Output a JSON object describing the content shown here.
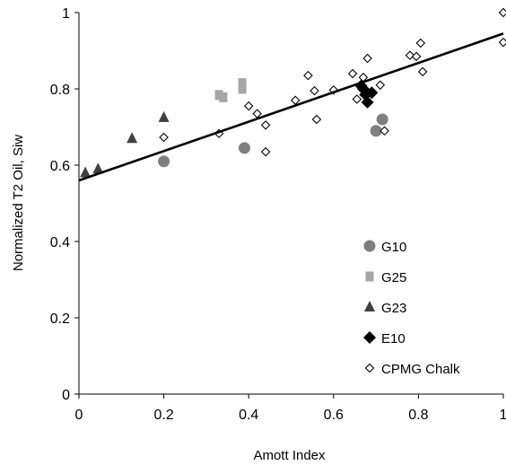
{
  "chart_data": {
    "type": "scatter",
    "xlabel": "Amott Index",
    "ylabel": "Normalized T2 Oil, Siw",
    "xlim": [
      0,
      1
    ],
    "ylim": [
      0,
      1
    ],
    "x_ticks": [
      "0",
      "0.2",
      "0.4",
      "0.6",
      "0.8",
      "1"
    ],
    "y_ticks": [
      "0",
      "0.2",
      "0.4",
      "0.6",
      "0.8",
      "1"
    ],
    "grid": false,
    "legend_position": "bottom-right",
    "series": [
      {
        "name": "G10",
        "marker": "circle",
        "color": "#7f7f7f",
        "points": [
          [
            0.2,
            0.61
          ],
          [
            0.39,
            0.645
          ],
          [
            0.7,
            0.69
          ],
          [
            0.715,
            0.72
          ]
        ]
      },
      {
        "name": "G25",
        "marker": "square",
        "color": "#a6a6a6",
        "points": [
          [
            0.33,
            0.784
          ],
          [
            0.34,
            0.778
          ],
          [
            0.385,
            0.8
          ],
          [
            0.385,
            0.815
          ]
        ]
      },
      {
        "name": "G23",
        "marker": "triangle",
        "color": "#404040",
        "points": [
          [
            0.015,
            0.58
          ],
          [
            0.045,
            0.59
          ],
          [
            0.125,
            0.67
          ],
          [
            0.2,
            0.725
          ]
        ]
      },
      {
        "name": "E10",
        "marker": "diamond-filled",
        "color": "#000000",
        "points": [
          [
            0.665,
            0.808
          ],
          [
            0.67,
            0.8
          ],
          [
            0.675,
            0.785
          ],
          [
            0.68,
            0.765
          ],
          [
            0.69,
            0.79
          ]
        ]
      },
      {
        "name": "CPMG Chalk",
        "marker": "diamond-open",
        "color": "#000000",
        "points": [
          [
            0.2,
            0.673
          ],
          [
            0.33,
            0.683
          ],
          [
            0.4,
            0.755
          ],
          [
            0.42,
            0.735
          ],
          [
            0.44,
            0.705
          ],
          [
            0.44,
            0.635
          ],
          [
            0.51,
            0.77
          ],
          [
            0.54,
            0.835
          ],
          [
            0.555,
            0.795
          ],
          [
            0.56,
            0.72
          ],
          [
            0.6,
            0.797
          ],
          [
            0.645,
            0.84
          ],
          [
            0.655,
            0.773
          ],
          [
            0.67,
            0.83
          ],
          [
            0.68,
            0.88
          ],
          [
            0.71,
            0.81
          ],
          [
            0.72,
            0.69
          ],
          [
            0.78,
            0.888
          ],
          [
            0.795,
            0.885
          ],
          [
            0.805,
            0.92
          ],
          [
            0.81,
            0.845
          ],
          [
            1.0,
            1.0
          ],
          [
            1.0,
            0.922
          ]
        ]
      }
    ],
    "trendline": {
      "x": [
        0,
        1
      ],
      "y": [
        0.56,
        0.945
      ],
      "color": "#000000"
    }
  }
}
